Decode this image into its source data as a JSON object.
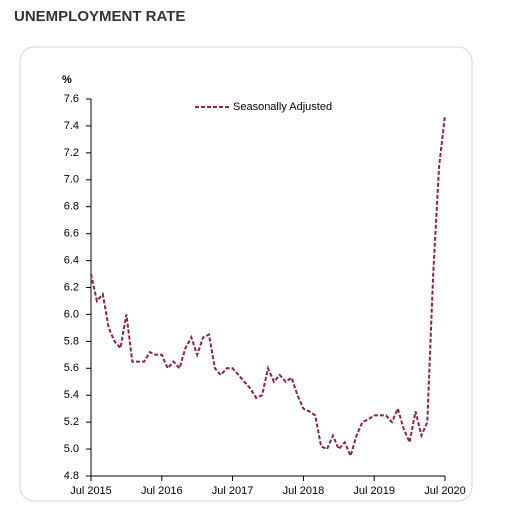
{
  "chart_data": {
    "type": "line",
    "title": "UNEMPLOYMENT RATE",
    "y_label": "%",
    "categories": [
      "Jul 2015",
      null,
      null,
      null,
      null,
      null,
      null,
      null,
      null,
      null,
      null,
      null,
      "Jul 2016",
      null,
      null,
      null,
      null,
      null,
      null,
      null,
      null,
      null,
      null,
      null,
      "Jul 2017",
      null,
      null,
      null,
      null,
      null,
      null,
      null,
      null,
      null,
      null,
      null,
      "Jul 2018",
      null,
      null,
      null,
      null,
      null,
      null,
      null,
      null,
      null,
      null,
      null,
      "Jul 2019",
      null,
      null,
      null,
      null,
      null,
      null,
      null,
      null,
      null,
      null,
      null,
      "Jul 2020"
    ],
    "series": [
      {
        "name": "Seasonally Adjusted",
        "color": "#8b2252",
        "values": [
          6.3,
          6.1,
          6.15,
          5.9,
          5.8,
          5.75,
          6.0,
          5.65,
          5.65,
          5.65,
          5.72,
          5.7,
          5.7,
          5.6,
          5.65,
          5.6,
          5.75,
          5.83,
          5.7,
          5.83,
          5.85,
          5.6,
          5.55,
          5.6,
          5.6,
          5.55,
          5.5,
          5.45,
          5.38,
          5.4,
          5.6,
          5.5,
          5.55,
          5.5,
          5.53,
          5.4,
          5.3,
          5.28,
          5.25,
          5.02,
          5.0,
          5.1,
          5.0,
          5.05,
          4.95,
          5.1,
          5.2,
          5.22,
          5.25,
          5.25,
          5.25,
          5.2,
          5.3,
          5.15,
          5.05,
          5.28,
          5.1,
          5.2,
          6.3,
          7.1,
          7.48
        ]
      }
    ],
    "ylim": [
      4.8,
      7.6
    ],
    "yticks": [
      {
        "value": 4.8,
        "label": "4.8"
      },
      {
        "value": 5,
        "label": "5.0"
      },
      5.2,
      5.4,
      5.6,
      5.8,
      {
        "value": 6,
        "label": "6.0"
      },
      6.2,
      6.4,
      6.6,
      6.8,
      {
        "value": 7,
        "label": "7.0"
      },
      7.2,
      7.4,
      7.6
    ],
    "legend": "top"
  }
}
